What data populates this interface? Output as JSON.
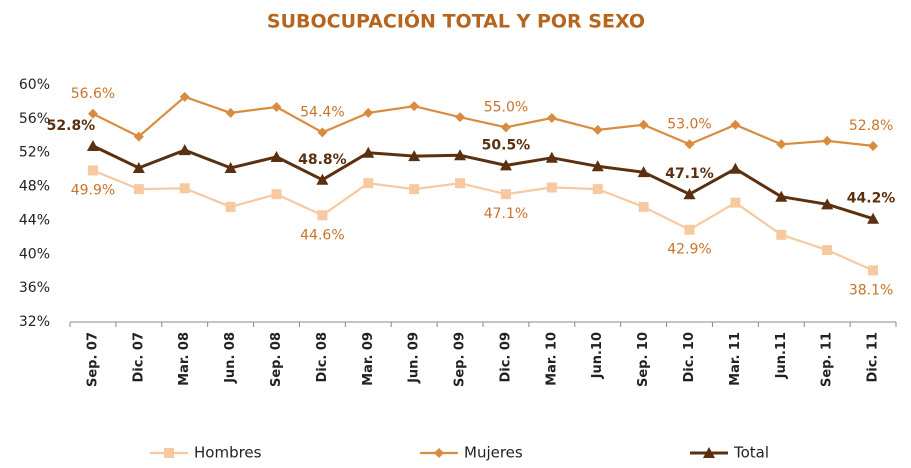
{
  "chart_data": {
    "type": "line",
    "title": "SUBOCUPACIÓN TOTAL Y POR SEXO",
    "categories": [
      "Sep. 07",
      "Dic. 07",
      "Mar. 08",
      "Jun. 08",
      "Sep. 08",
      "Dic. 08",
      "Mar. 09",
      "Jun. 09",
      "Sep. 09",
      "Dic. 09",
      "Mar. 10",
      "Jun.10",
      "Sep. 10",
      "Dic. 10",
      "Mar. 11",
      "Jun.11",
      "Sep. 11",
      "Dic. 11"
    ],
    "series": [
      {
        "name": "Hombres",
        "color": "#f7c9a0",
        "marker": "square",
        "values": [
          49.9,
          47.7,
          47.8,
          45.6,
          47.1,
          44.6,
          48.4,
          47.7,
          48.4,
          47.1,
          47.9,
          47.7,
          45.6,
          42.9,
          46.1,
          42.3,
          40.5,
          38.1
        ],
        "value_labels": [
          "49.9%",
          null,
          null,
          null,
          null,
          "44.6%",
          null,
          null,
          null,
          "47.1%",
          null,
          null,
          null,
          "42.9%",
          null,
          null,
          null,
          "38.1%"
        ]
      },
      {
        "name": "Mujeres",
        "color": "#d98c3f",
        "marker": "diamond",
        "values": [
          56.6,
          53.9,
          58.6,
          56.7,
          57.4,
          54.4,
          56.7,
          57.5,
          56.2,
          55.0,
          56.1,
          54.7,
          55.3,
          53.0,
          55.3,
          53.0,
          53.4,
          52.8
        ],
        "value_labels": [
          "56.6%",
          null,
          null,
          null,
          null,
          "54.4%",
          null,
          null,
          null,
          "55.0%",
          null,
          null,
          null,
          "53.0%",
          null,
          null,
          null,
          "52.8%"
        ]
      },
      {
        "name": "Total",
        "color": "#5a3010",
        "marker": "triangle",
        "values": [
          52.8,
          50.2,
          52.3,
          50.2,
          51.5,
          48.8,
          52.0,
          51.6,
          51.7,
          50.5,
          51.4,
          50.4,
          49.7,
          47.1,
          50.1,
          46.8,
          45.9,
          44.2
        ],
        "value_labels": [
          "52.8%",
          null,
          null,
          null,
          null,
          "48.8%",
          null,
          null,
          null,
          "50.5%",
          null,
          null,
          null,
          "47.1%",
          null,
          null,
          null,
          "44.2%"
        ]
      }
    ],
    "ylim": [
      32,
      60
    ],
    "yticks": [
      {
        "value": 32,
        "label": "32%"
      },
      {
        "value": 36,
        "label": "36%"
      },
      {
        "value": 40,
        "label": "40%"
      },
      {
        "value": 44,
        "label": "44%"
      },
      {
        "value": 48,
        "label": "48%"
      },
      {
        "value": 52,
        "label": "52%"
      },
      {
        "value": 56,
        "label": "56%"
      },
      {
        "value": 60,
        "label": "60%"
      }
    ],
    "grid": false,
    "legend": "bottom"
  }
}
